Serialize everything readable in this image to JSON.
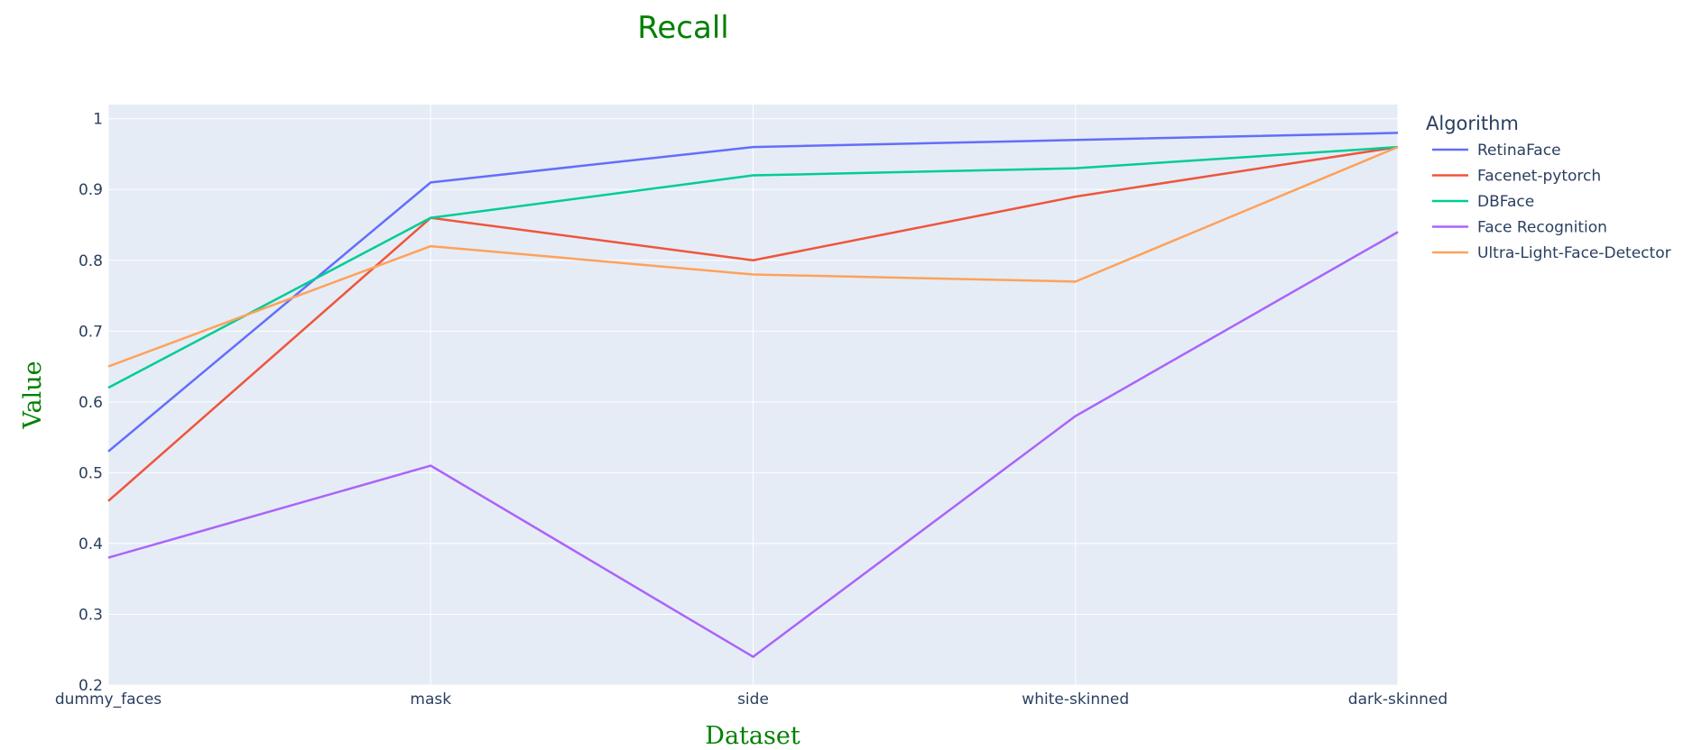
{
  "chart_data": {
    "type": "line",
    "title": "Recall",
    "xlabel": "Dataset",
    "ylabel": "Value",
    "categories": [
      "dummy_faces",
      "mask",
      "side",
      "white-skinned",
      "dark-skinned"
    ],
    "ylim": [
      0.2,
      1.02
    ],
    "yticks": [
      "0.2",
      "0.3",
      "0.4",
      "0.5",
      "0.6",
      "0.7",
      "0.8",
      "0.9",
      "1"
    ],
    "grid": true,
    "legend_title": "Algorithm",
    "legend_position": "right",
    "series": [
      {
        "name": "RetinaFace",
        "color": "#636efa",
        "values": [
          0.53,
          0.91,
          0.96,
          0.97,
          0.98
        ]
      },
      {
        "name": "Facenet-pytorch",
        "color": "#EF553B",
        "values": [
          0.46,
          0.86,
          0.8,
          0.89,
          0.96
        ]
      },
      {
        "name": "DBFace",
        "color": "#00cc96",
        "values": [
          0.62,
          0.86,
          0.92,
          0.93,
          0.96
        ]
      },
      {
        "name": "Face Recognition",
        "color": "#ab63fa",
        "values": [
          0.38,
          0.51,
          0.24,
          0.58,
          0.84
        ]
      },
      {
        "name": "Ultra-Light-Face-Detector",
        "color": "#FFA15A",
        "values": [
          0.65,
          0.82,
          0.78,
          0.77,
          0.96
        ]
      }
    ]
  }
}
